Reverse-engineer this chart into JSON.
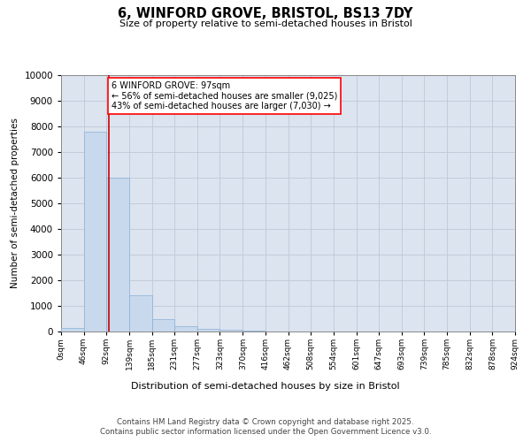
{
  "title_line1": "6, WINFORD GROVE, BRISTOL, BS13 7DY",
  "title_line2": "Size of property relative to semi-detached houses in Bristol",
  "xlabel": "Distribution of semi-detached houses by size in Bristol",
  "ylabel": "Number of semi-detached properties",
  "property_label": "6 WINFORD GROVE: 97sqm",
  "smaller_pct": "56% of semi-detached houses are smaller (9,025)",
  "larger_pct": "43% of semi-detached houses are larger (7,030)",
  "property_size": 97,
  "bin_edges": [
    0,
    46,
    92,
    139,
    185,
    231,
    277,
    323,
    370,
    416,
    462,
    508,
    554,
    601,
    647,
    693,
    739,
    785,
    832,
    878,
    924
  ],
  "bin_labels": [
    "0sqm",
    "46sqm",
    "92sqm",
    "139sqm",
    "185sqm",
    "231sqm",
    "277sqm",
    "323sqm",
    "370sqm",
    "416sqm",
    "462sqm",
    "508sqm",
    "554sqm",
    "601sqm",
    "647sqm",
    "693sqm",
    "739sqm",
    "785sqm",
    "832sqm",
    "878sqm",
    "924sqm"
  ],
  "counts": [
    150,
    7800,
    6000,
    1400,
    500,
    200,
    110,
    80,
    50,
    15,
    5,
    2,
    1,
    0,
    0,
    0,
    0,
    0,
    0,
    0
  ],
  "bar_color": "#c8d9ee",
  "bar_edge_color": "#8ab0d5",
  "grid_color": "#c0c8d8",
  "background_color": "#dce4f0",
  "vline_color": "#cc0000",
  "ylim_max": 10000,
  "yticks": [
    0,
    1000,
    2000,
    3000,
    4000,
    5000,
    6000,
    7000,
    8000,
    9000,
    10000
  ],
  "footer_line1": "Contains HM Land Registry data © Crown copyright and database right 2025.",
  "footer_line2": "Contains public sector information licensed under the Open Government Licence v3.0."
}
